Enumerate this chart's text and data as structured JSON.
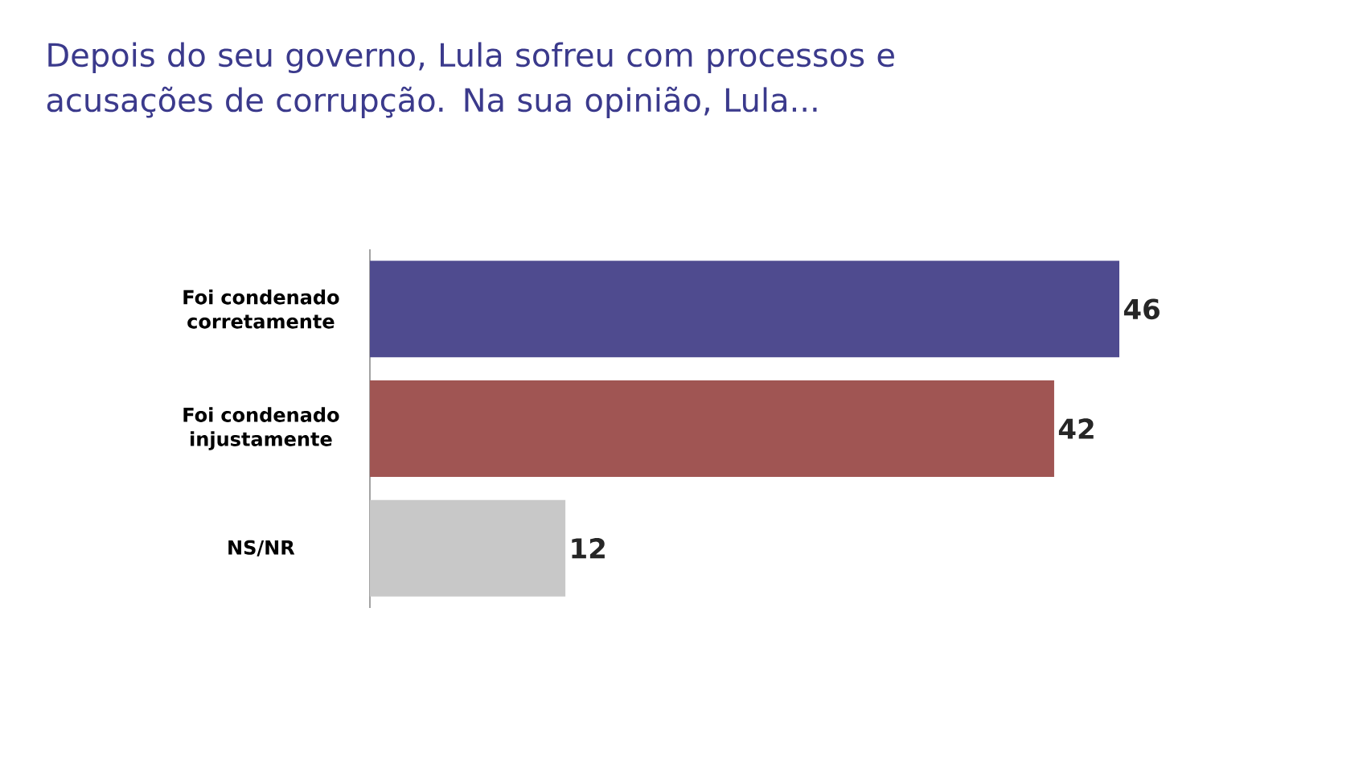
{
  "chart_data": {
    "type": "bar",
    "orientation": "horizontal",
    "title": "Depois do seu governo, Lula sofreu com processos e acusações de corrupção. Na sua opinião, Lula...",
    "categories": [
      "Foi condenado corretamente",
      "Foi condenado injustamente",
      "NS/NR"
    ],
    "values": [
      46,
      42,
      12
    ],
    "colors": [
      "#4f4b8f",
      "#a05553",
      "#c8c8c8"
    ],
    "data_labels": true
  }
}
